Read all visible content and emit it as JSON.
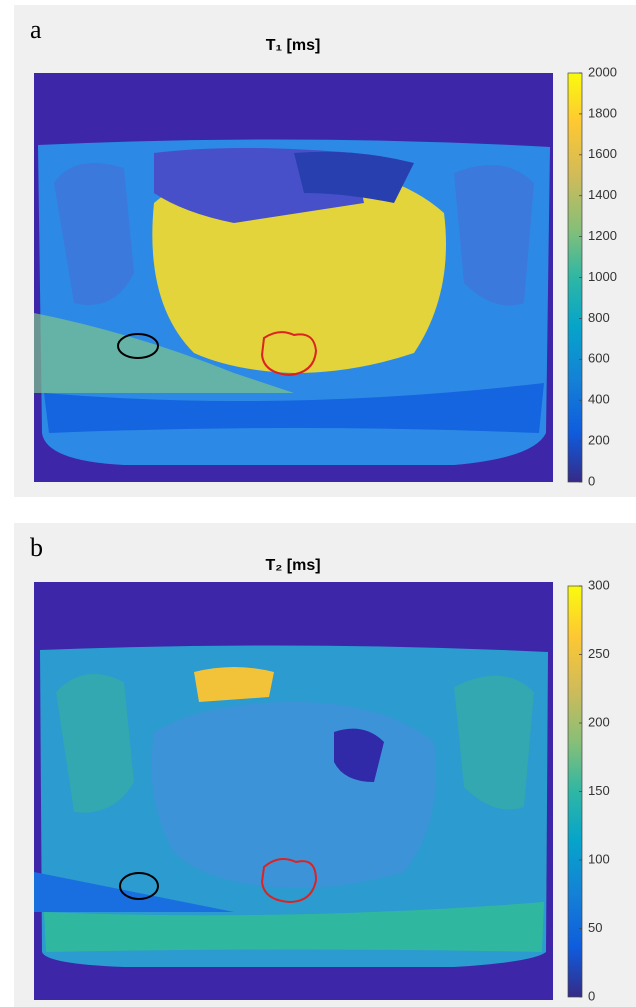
{
  "panels": [
    {
      "label": "a",
      "title": "T₁ [ms]",
      "colorbar": {
        "lim": [
          0,
          2000
        ],
        "ticks": [
          0,
          200,
          400,
          600,
          800,
          1000,
          1200,
          1400,
          1600,
          1800,
          2000
        ]
      }
    },
    {
      "label": "b",
      "title": "T₂ [ms]",
      "colorbar": {
        "lim": [
          0,
          300
        ],
        "ticks": [
          0,
          50,
          100,
          150,
          200,
          250,
          300
        ]
      }
    }
  ]
}
